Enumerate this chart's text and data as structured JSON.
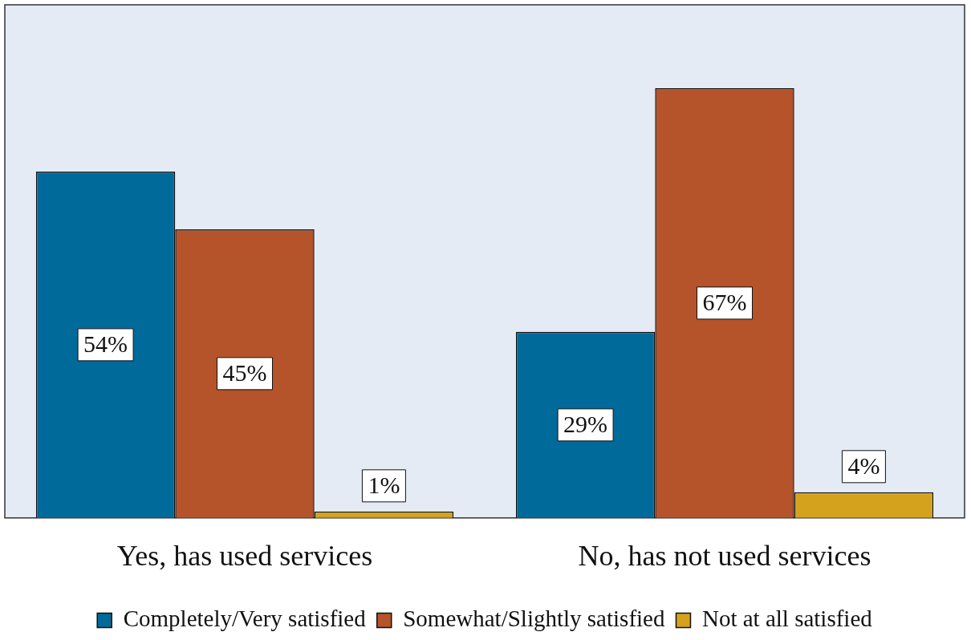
{
  "chart_data": {
    "type": "bar",
    "categories": [
      "Yes, has used services",
      "No, has not used services"
    ],
    "series": [
      {
        "name": "Completely/Very satisfied",
        "color": "#006a9a",
        "values": [
          54,
          29
        ],
        "value_labels": [
          "54%",
          "29%"
        ]
      },
      {
        "name": "Somewhat/Slightly satisfied",
        "color": "#b5532a",
        "values": [
          45,
          67
        ],
        "value_labels": [
          "45%",
          "67%"
        ]
      },
      {
        "name": "Not at all satisfied",
        "color": "#d4a21c",
        "values": [
          1,
          4
        ],
        "value_labels": [
          "1%",
          "4%"
        ]
      }
    ],
    "ylim": [
      0,
      80
    ],
    "tick_labels": "x",
    "grid": false,
    "legend": "bottom"
  }
}
